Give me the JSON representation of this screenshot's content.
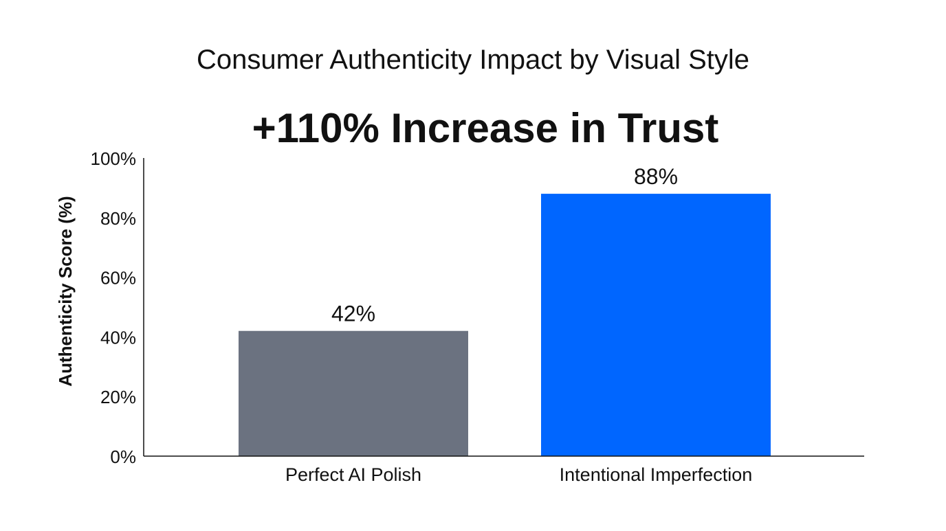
{
  "chart_data": {
    "type": "bar",
    "title": "Consumer Authenticity Impact by Visual Style",
    "subtitle": "+110% Increase in Trust",
    "xlabel": "",
    "ylabel": "Authenticity Score (%)",
    "ylim": [
      0,
      100
    ],
    "yticks": [
      0,
      20,
      40,
      60,
      80,
      100
    ],
    "ytick_labels": [
      "0%",
      "20%",
      "40%",
      "60%",
      "80%",
      "100%"
    ],
    "categories": [
      "Perfect AI Polish",
      "Intentional Imperfection"
    ],
    "values": [
      42,
      88
    ],
    "data_labels": [
      "42%",
      "88%"
    ],
    "colors": [
      "#6b7280",
      "#0066ff"
    ],
    "grid": false,
    "legend": "none"
  }
}
